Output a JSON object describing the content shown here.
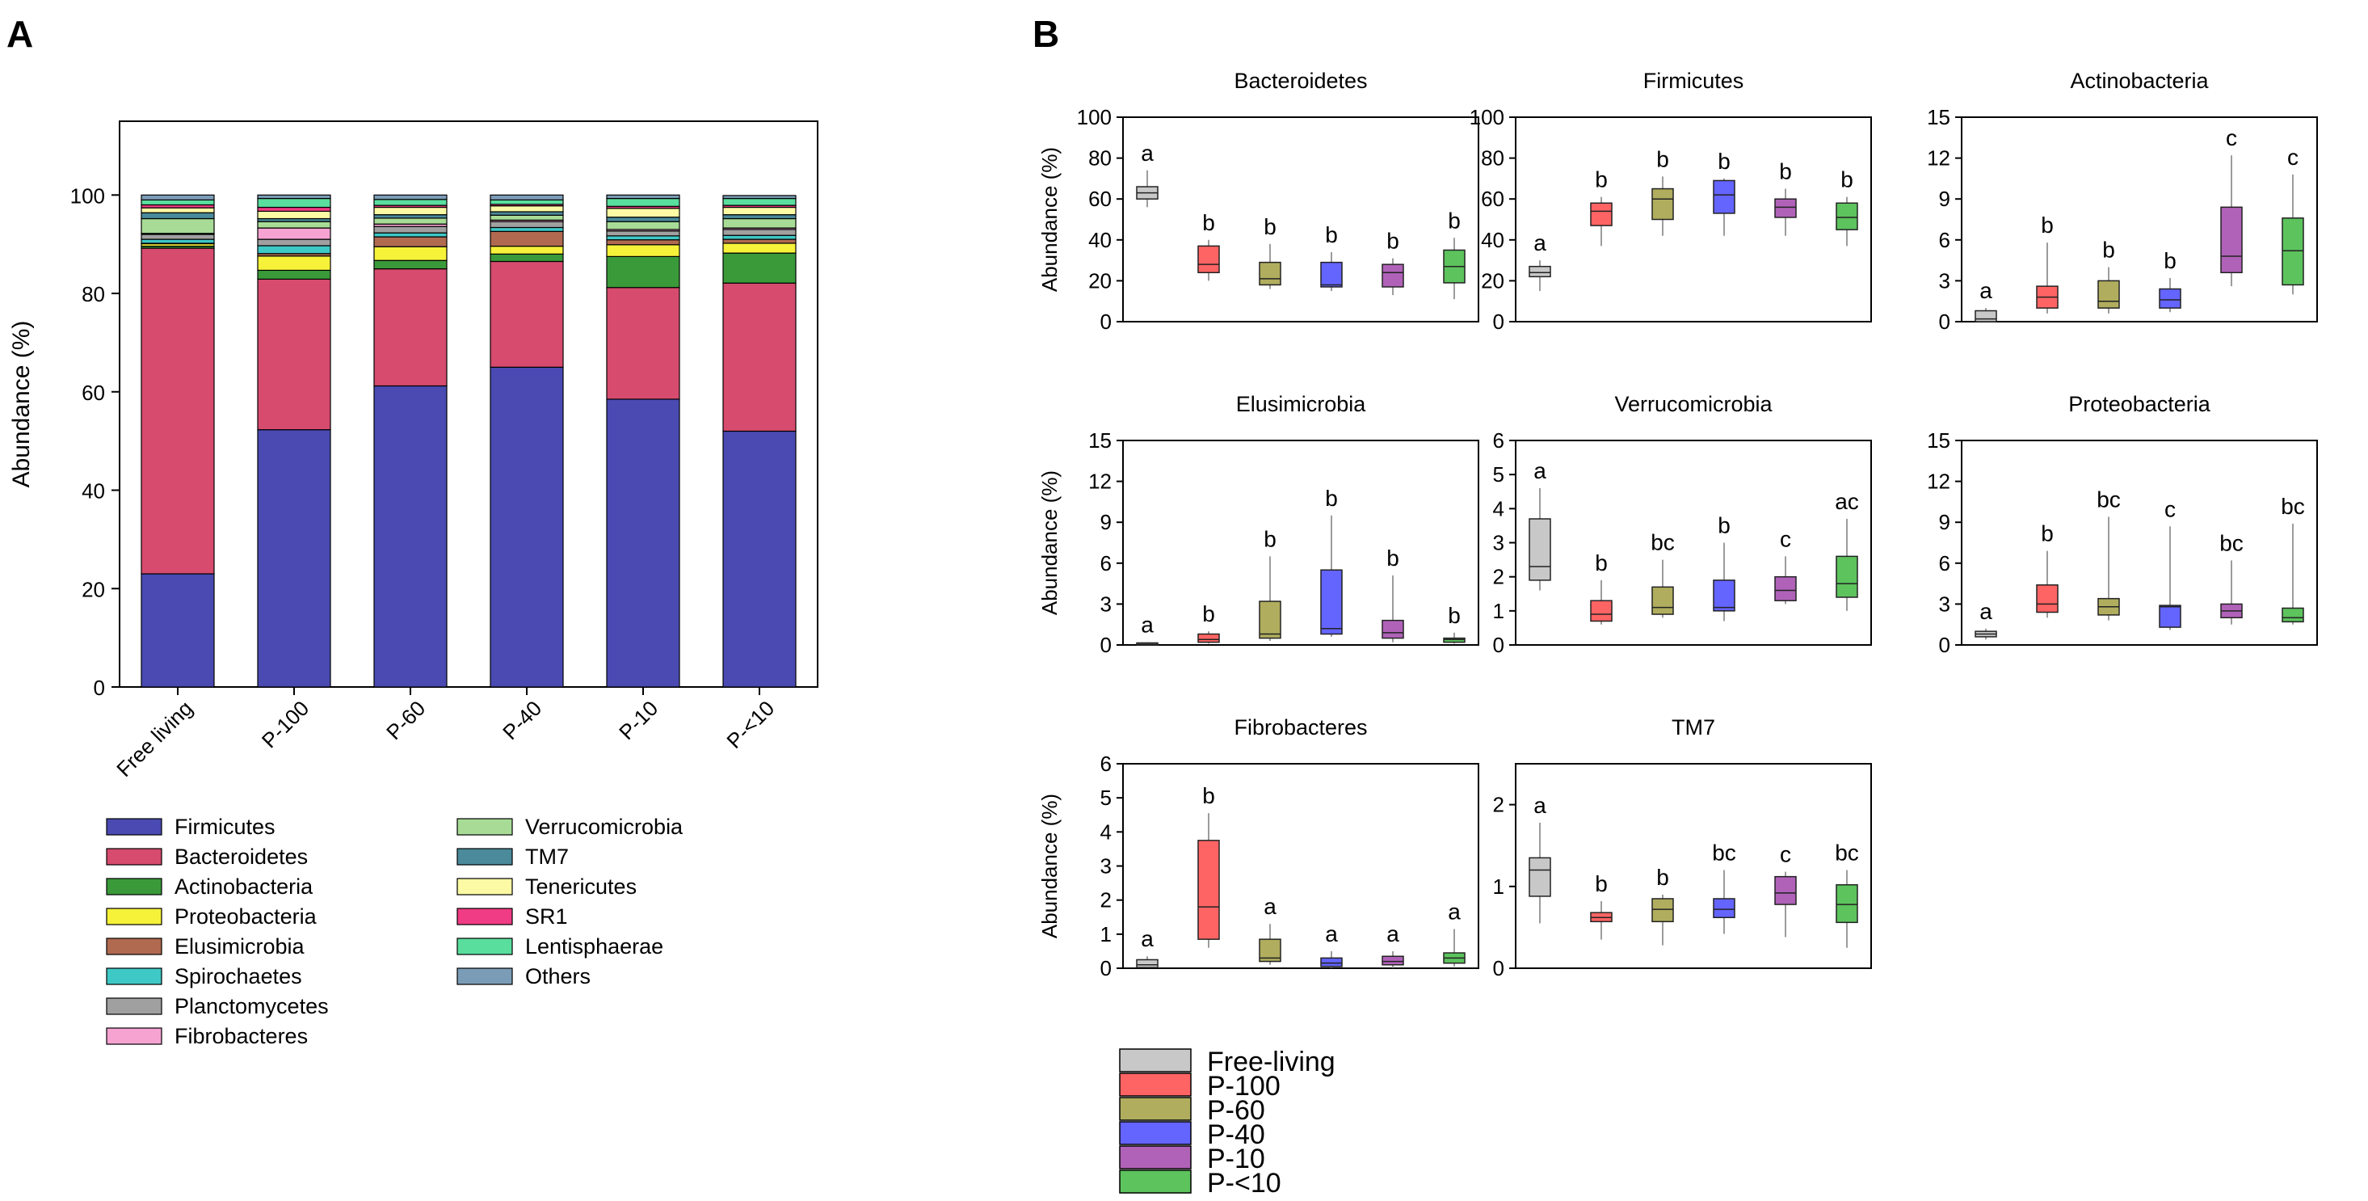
{
  "panel_labels": {
    "a": "A",
    "b": "B"
  },
  "legend_b": {
    "entries": [
      {
        "label": "Free-living",
        "color": "#c8c8c8"
      },
      {
        "label": "P-100",
        "color": "#ff6464"
      },
      {
        "label": "P-60",
        "color": "#b0ae5e"
      },
      {
        "label": "P-40",
        "color": "#6464ff"
      },
      {
        "label": "P-10",
        "color": "#b062b8"
      },
      {
        "label": "P-<10",
        "color": "#5dc35d"
      }
    ]
  },
  "chart_data": [
    {
      "type": "bar",
      "stacked": true,
      "panel": "A",
      "title": "",
      "xlabel": "",
      "ylabel": "Abundance (%)",
      "ylim": [
        0,
        115
      ],
      "yticks": [
        0,
        20,
        40,
        60,
        80,
        100
      ],
      "categories": [
        "Free living",
        "P-100",
        "P-60",
        "P-40",
        "P-10",
        "P-<10"
      ],
      "series": [
        {
          "name": "Firmicutes",
          "color": "#4a4ab2",
          "values": [
            23.0,
            52.3,
            61.2,
            65.0,
            58.5,
            52.0
          ]
        },
        {
          "name": "Bacteroidetes",
          "color": "#d64b6e",
          "values": [
            66.2,
            30.6,
            23.8,
            21.5,
            22.7,
            30.1
          ]
        },
        {
          "name": "Actinobacteria",
          "color": "#3a9a3a",
          "values": [
            0.4,
            1.8,
            1.7,
            1.5,
            6.3,
            6.1
          ]
        },
        {
          "name": "Proteobacteria",
          "color": "#f6f23a",
          "values": [
            0.5,
            2.9,
            2.8,
            1.6,
            2.4,
            2.0
          ]
        },
        {
          "name": "Elusimicrobia",
          "color": "#b06a50",
          "values": [
            0.1,
            0.5,
            2.0,
            3.0,
            1.0,
            0.8
          ]
        },
        {
          "name": "Spirochaetes",
          "color": "#3ec8c6",
          "values": [
            0.8,
            1.6,
            0.8,
            0.8,
            0.8,
            0.8
          ]
        },
        {
          "name": "Planctomycetes",
          "color": "#a0a0a0",
          "values": [
            1.0,
            1.3,
            1.3,
            1.2,
            1.0,
            1.2
          ]
        },
        {
          "name": "Fibrobacteres",
          "color": "#f6a3d2",
          "values": [
            0.2,
            2.3,
            0.5,
            0.3,
            0.3,
            0.3
          ]
        },
        {
          "name": "Verrucomicrobia",
          "color": "#a8dc96",
          "values": [
            3.0,
            1.3,
            1.2,
            1.0,
            1.6,
            1.9
          ]
        },
        {
          "name": "TM7",
          "color": "#4a8a9a",
          "values": [
            1.2,
            0.6,
            0.7,
            0.7,
            0.9,
            0.8
          ]
        },
        {
          "name": "Tenericutes",
          "color": "#fcfaa4",
          "values": [
            1.0,
            1.5,
            1.5,
            1.2,
            1.8,
            1.5
          ]
        },
        {
          "name": "SR1",
          "color": "#f03c84",
          "values": [
            0.6,
            0.8,
            0.4,
            0.3,
            0.4,
            0.4
          ]
        },
        {
          "name": "Lentisphaerae",
          "color": "#5ade9e",
          "values": [
            1.0,
            1.8,
            1.2,
            0.9,
            1.6,
            1.4
          ]
        },
        {
          "name": "Others",
          "color": "#7b9cb6",
          "values": [
            1.0,
            0.7,
            0.9,
            1.0,
            0.7,
            0.6
          ]
        }
      ]
    },
    {
      "type": "box",
      "panel": "B",
      "title": "Bacteroidetes",
      "ylabel": "Abundance (%)",
      "ylim": [
        0,
        100
      ],
      "yticks": [
        0,
        20,
        40,
        60,
        80,
        100
      ],
      "groups": [
        "Free-living",
        "P-100",
        "P-60",
        "P-40",
        "P-10",
        "P-<10"
      ],
      "boxes": [
        {
          "min": 56,
          "q1": 60,
          "median": 63,
          "q3": 66,
          "max": 74,
          "label": "a"
        },
        {
          "min": 20,
          "q1": 24,
          "median": 28,
          "q3": 37,
          "max": 40,
          "label": "b"
        },
        {
          "min": 16,
          "q1": 18,
          "median": 21,
          "q3": 29,
          "max": 38,
          "label": "b"
        },
        {
          "min": 15,
          "q1": 17,
          "median": 18,
          "q3": 29,
          "max": 34,
          "label": "b"
        },
        {
          "min": 13,
          "q1": 17,
          "median": 24,
          "q3": 28,
          "max": 31,
          "label": "b"
        },
        {
          "min": 11,
          "q1": 19,
          "median": 27,
          "q3": 35,
          "max": 41,
          "label": "b"
        }
      ]
    },
    {
      "type": "box",
      "panel": "B",
      "title": "Firmicutes",
      "ylabel": "",
      "ylim": [
        0,
        100
      ],
      "yticks": [
        0,
        20,
        40,
        60,
        80,
        100
      ],
      "groups": [
        "Free-living",
        "P-100",
        "P-60",
        "P-40",
        "P-10",
        "P-<10"
      ],
      "boxes": [
        {
          "min": 15,
          "q1": 22,
          "median": 24,
          "q3": 27,
          "max": 30,
          "label": "a"
        },
        {
          "min": 37,
          "q1": 47,
          "median": 54,
          "q3": 58,
          "max": 61,
          "label": "b"
        },
        {
          "min": 42,
          "q1": 50,
          "median": 60,
          "q3": 65,
          "max": 71,
          "label": "b"
        },
        {
          "min": 42,
          "q1": 53,
          "median": 62,
          "q3": 69,
          "max": 70,
          "label": "b"
        },
        {
          "min": 42,
          "q1": 51,
          "median": 56,
          "q3": 60,
          "max": 65,
          "label": "b"
        },
        {
          "min": 37,
          "q1": 45,
          "median": 51,
          "q3": 58,
          "max": 61,
          "label": "b"
        }
      ]
    },
    {
      "type": "box",
      "panel": "B",
      "title": "Actinobacteria",
      "ylabel": "",
      "ylim": [
        0,
        15
      ],
      "yticks": [
        0,
        3,
        6,
        9,
        12,
        15
      ],
      "groups": [
        "Free-living",
        "P-100",
        "P-60",
        "P-40",
        "P-10",
        "P-<10"
      ],
      "boxes": [
        {
          "min": 0,
          "q1": 0,
          "median": 0.2,
          "q3": 0.8,
          "max": 1.0,
          "label": "a"
        },
        {
          "min": 0.6,
          "q1": 1.0,
          "median": 1.8,
          "q3": 2.6,
          "max": 5.8,
          "label": "b"
        },
        {
          "min": 0.6,
          "q1": 1.0,
          "median": 1.5,
          "q3": 3.0,
          "max": 4.0,
          "label": "b"
        },
        {
          "min": 0.7,
          "q1": 1.0,
          "median": 1.6,
          "q3": 2.4,
          "max": 3.2,
          "label": "b"
        },
        {
          "min": 2.6,
          "q1": 3.6,
          "median": 4.8,
          "q3": 8.4,
          "max": 12.2,
          "label": "c"
        },
        {
          "min": 2.0,
          "q1": 2.7,
          "median": 5.2,
          "q3": 7.6,
          "max": 10.8,
          "label": "c"
        }
      ]
    },
    {
      "type": "box",
      "panel": "B",
      "title": "Elusimicrobia",
      "ylabel": "Abundance (%)",
      "ylim": [
        0,
        15
      ],
      "yticks": [
        0,
        3,
        6,
        9,
        12,
        15
      ],
      "groups": [
        "Free-living",
        "P-100",
        "P-60",
        "P-40",
        "P-10",
        "P-<10"
      ],
      "boxes": [
        {
          "min": 0,
          "q1": 0,
          "median": 0.05,
          "q3": 0.15,
          "max": 0.2,
          "label": "a"
        },
        {
          "min": 0.1,
          "q1": 0.2,
          "median": 0.4,
          "q3": 0.8,
          "max": 1.0,
          "label": "b"
        },
        {
          "min": 0.3,
          "q1": 0.5,
          "median": 0.8,
          "q3": 3.2,
          "max": 6.5,
          "label": "b"
        },
        {
          "min": 0.6,
          "q1": 0.8,
          "median": 1.2,
          "q3": 5.5,
          "max": 9.5,
          "label": "b"
        },
        {
          "min": 0.2,
          "q1": 0.5,
          "median": 0.9,
          "q3": 1.8,
          "max": 5.1,
          "label": "b"
        },
        {
          "min": 0.1,
          "q1": 0.2,
          "median": 0.4,
          "q3": 0.5,
          "max": 0.9,
          "label": "b"
        }
      ]
    },
    {
      "type": "box",
      "panel": "B",
      "title": "Verrucomicrobia",
      "ylabel": "",
      "ylim": [
        0,
        6
      ],
      "yticks": [
        0,
        1,
        2,
        3,
        4,
        5,
        6
      ],
      "groups": [
        "Free-living",
        "P-100",
        "P-60",
        "P-40",
        "P-10",
        "P-<10"
      ],
      "boxes": [
        {
          "min": 1.6,
          "q1": 1.9,
          "median": 2.3,
          "q3": 3.7,
          "max": 4.6,
          "label": "a"
        },
        {
          "min": 0.6,
          "q1": 0.7,
          "median": 0.9,
          "q3": 1.3,
          "max": 1.9,
          "label": "b"
        },
        {
          "min": 0.8,
          "q1": 0.9,
          "median": 1.1,
          "q3": 1.7,
          "max": 2.5,
          "label": "bc"
        },
        {
          "min": 0.7,
          "q1": 1.0,
          "median": 1.1,
          "q3": 1.9,
          "max": 3.0,
          "label": "b"
        },
        {
          "min": 1.2,
          "q1": 1.3,
          "median": 1.6,
          "q3": 2.0,
          "max": 2.6,
          "label": "c"
        },
        {
          "min": 1.0,
          "q1": 1.4,
          "median": 1.8,
          "q3": 2.6,
          "max": 3.7,
          "label": "ac"
        }
      ]
    },
    {
      "type": "box",
      "panel": "B",
      "title": "Proteobacteria",
      "ylabel": "",
      "ylim": [
        0,
        15
      ],
      "yticks": [
        0,
        3,
        6,
        9,
        12,
        15
      ],
      "groups": [
        "Free-living",
        "P-100",
        "P-60",
        "P-40",
        "P-10",
        "P-<10"
      ],
      "boxes": [
        {
          "min": 0.4,
          "q1": 0.6,
          "median": 0.8,
          "q3": 1.0,
          "max": 1.2,
          "label": "a"
        },
        {
          "min": 2.0,
          "q1": 2.4,
          "median": 3.0,
          "q3": 4.4,
          "max": 6.9,
          "label": "b"
        },
        {
          "min": 1.8,
          "q1": 2.2,
          "median": 2.8,
          "q3": 3.4,
          "max": 9.4,
          "label": "bc"
        },
        {
          "min": 1.1,
          "q1": 1.3,
          "median": 2.8,
          "q3": 2.9,
          "max": 8.7,
          "label": "c"
        },
        {
          "min": 1.5,
          "q1": 2.0,
          "median": 2.5,
          "q3": 3.0,
          "max": 6.2,
          "label": "bc"
        },
        {
          "min": 1.5,
          "q1": 1.7,
          "median": 2.0,
          "q3": 2.7,
          "max": 8.9,
          "label": "bc"
        }
      ]
    },
    {
      "type": "box",
      "panel": "B",
      "title": "Fibrobacteres",
      "ylabel": "Abundance (%)",
      "ylim": [
        0,
        6
      ],
      "yticks": [
        0,
        1,
        2,
        3,
        4,
        5,
        6
      ],
      "groups": [
        "Free-living",
        "P-100",
        "P-60",
        "P-40",
        "P-10",
        "P-<10"
      ],
      "boxes": [
        {
          "min": 0,
          "q1": 0.02,
          "median": 0.1,
          "q3": 0.25,
          "max": 0.35,
          "label": "a"
        },
        {
          "min": 0.6,
          "q1": 0.85,
          "median": 1.8,
          "q3": 3.75,
          "max": 4.55,
          "label": "b"
        },
        {
          "min": 0.1,
          "q1": 0.2,
          "median": 0.3,
          "q3": 0.85,
          "max": 1.3,
          "label": "a"
        },
        {
          "min": 0,
          "q1": 0.05,
          "median": 0.15,
          "q3": 0.3,
          "max": 0.5,
          "label": "a"
        },
        {
          "min": 0,
          "q1": 0.1,
          "median": 0.2,
          "q3": 0.35,
          "max": 0.5,
          "label": "a"
        },
        {
          "min": 0.05,
          "q1": 0.15,
          "median": 0.3,
          "q3": 0.45,
          "max": 1.15,
          "label": "a"
        }
      ]
    },
    {
      "type": "box",
      "panel": "B",
      "title": "TM7",
      "ylabel": "",
      "ylim": [
        0,
        2.5
      ],
      "yticks": [
        0,
        1,
        2
      ],
      "groups": [
        "Free-living",
        "P-100",
        "P-60",
        "P-40",
        "P-10",
        "P-<10"
      ],
      "boxes": [
        {
          "min": 0.55,
          "q1": 0.88,
          "median": 1.2,
          "q3": 1.35,
          "max": 1.78,
          "label": "a"
        },
        {
          "min": 0.35,
          "q1": 0.57,
          "median": 0.62,
          "q3": 0.68,
          "max": 0.82,
          "label": "b"
        },
        {
          "min": 0.28,
          "q1": 0.57,
          "median": 0.72,
          "q3": 0.85,
          "max": 0.9,
          "label": "b"
        },
        {
          "min": 0.42,
          "q1": 0.62,
          "median": 0.72,
          "q3": 0.85,
          "max": 1.2,
          "label": "bc"
        },
        {
          "min": 0.38,
          "q1": 0.78,
          "median": 0.92,
          "q3": 1.12,
          "max": 1.18,
          "label": "c"
        },
        {
          "min": 0.25,
          "q1": 0.56,
          "median": 0.78,
          "q3": 1.02,
          "max": 1.2,
          "label": "bc"
        }
      ]
    }
  ]
}
